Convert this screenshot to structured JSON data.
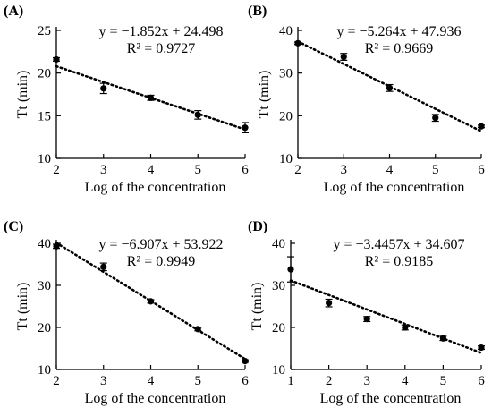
{
  "chart_data": [
    {
      "type": "scatter",
      "panel_label": "(A)",
      "xlabel": "Log of the concentration",
      "ylabel": "Tt (min)",
      "xlim": [
        2,
        6
      ],
      "ylim": [
        10,
        25
      ],
      "xticks": [
        2,
        3,
        4,
        5,
        6
      ],
      "yticks": [
        10,
        15,
        20,
        25
      ],
      "equation": "y = −1.852x + 24.498",
      "r2": "R² = 0.9727",
      "trend": {
        "slope": -1.852,
        "intercept": 24.498,
        "x_from": 2,
        "x_to": 6
      },
      "points": [
        {
          "x": 2,
          "y": 21.6,
          "err": 0.2
        },
        {
          "x": 3,
          "y": 18.2,
          "err": 0.6
        },
        {
          "x": 4,
          "y": 17.1,
          "err": 0.3
        },
        {
          "x": 5,
          "y": 15.1,
          "err": 0.5
        },
        {
          "x": 6,
          "y": 13.6,
          "err": 0.6
        }
      ]
    },
    {
      "type": "scatter",
      "panel_label": "(B)",
      "xlabel": "Log of the concentration",
      "ylabel": "Tt (min)",
      "xlim": [
        2,
        6
      ],
      "ylim": [
        10,
        40
      ],
      "xticks": [
        2,
        3,
        4,
        5,
        6
      ],
      "yticks": [
        10,
        20,
        30,
        40
      ],
      "equation": "y = −5.264x + 47.936",
      "r2": "R² = 0.9669",
      "trend": {
        "slope": -5.264,
        "intercept": 47.936,
        "x_from": 2,
        "x_to": 6
      },
      "points": [
        {
          "x": 2,
          "y": 37.0,
          "err": 0.3
        },
        {
          "x": 3,
          "y": 33.8,
          "err": 0.8
        },
        {
          "x": 4,
          "y": 26.5,
          "err": 0.8
        },
        {
          "x": 5,
          "y": 19.5,
          "err": 0.8
        },
        {
          "x": 6,
          "y": 17.5,
          "err": 0.3
        }
      ]
    },
    {
      "type": "scatter",
      "panel_label": "(C)",
      "xlabel": "Log of the concentration",
      "ylabel": "Tt (min)",
      "xlim": [
        2,
        6
      ],
      "ylim": [
        10,
        40
      ],
      "xticks": [
        2,
        3,
        4,
        5,
        6
      ],
      "yticks": [
        10,
        20,
        30,
        40
      ],
      "equation": "y = −6.907x + 53.922",
      "r2": "R² = 0.9949",
      "trend": {
        "slope": -6.907,
        "intercept": 53.922,
        "x_from": 2,
        "x_to": 6
      },
      "points": [
        {
          "x": 2,
          "y": 39.3,
          "err": 0.5
        },
        {
          "x": 3,
          "y": 34.4,
          "err": 0.9
        },
        {
          "x": 4,
          "y": 26.2,
          "err": 0.4
        },
        {
          "x": 5,
          "y": 19.6,
          "err": 0.4
        },
        {
          "x": 6,
          "y": 12.0,
          "err": 0.3
        }
      ]
    },
    {
      "type": "scatter",
      "panel_label": "(D)",
      "xlabel": "Log of the concentration",
      "ylabel": "Tt (min)",
      "xlim": [
        1,
        6
      ],
      "ylim": [
        10,
        40
      ],
      "xticks": [
        1,
        2,
        3,
        4,
        5,
        6
      ],
      "yticks": [
        10,
        20,
        30,
        40
      ],
      "equation": "y = −3.4457x + 34.607",
      "r2": "R² = 0.9185",
      "trend": {
        "slope": -3.4457,
        "intercept": 34.607,
        "x_from": 1,
        "x_to": 6
      },
      "points": [
        {
          "x": 1,
          "y": 33.8,
          "err": 3.0
        },
        {
          "x": 2,
          "y": 25.8,
          "err": 0.9
        },
        {
          "x": 3,
          "y": 22.0,
          "err": 0.6
        },
        {
          "x": 4,
          "y": 20.0,
          "err": 0.6
        },
        {
          "x": 5,
          "y": 17.4,
          "err": 0.5
        },
        {
          "x": 6,
          "y": 15.2,
          "err": 0.4
        }
      ]
    }
  ]
}
